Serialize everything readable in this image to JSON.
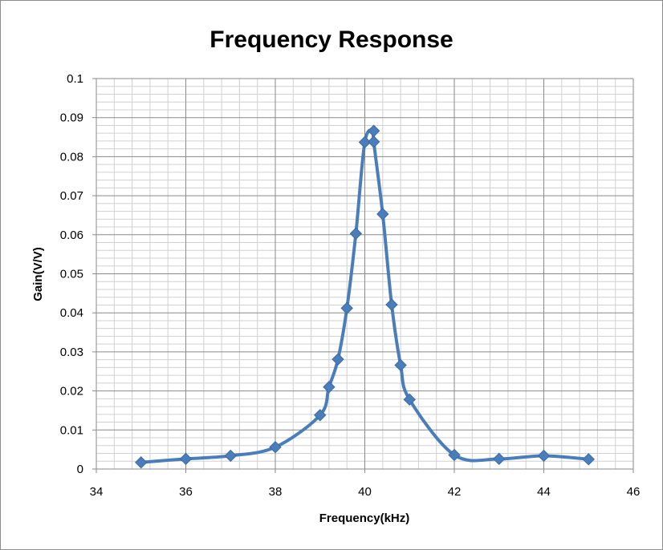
{
  "chart_data": {
    "type": "scatter",
    "title": "Frequency Response",
    "xlabel": "Frequency(kHz)",
    "ylabel": "Gain(V/V)",
    "xlim": [
      34,
      46
    ],
    "ylim": [
      0,
      0.1
    ],
    "x_ticks": [
      "34",
      "36",
      "38",
      "40",
      "42",
      "44",
      "46"
    ],
    "y_ticks": [
      "0",
      "0.01",
      "0.02",
      "0.03",
      "0.04",
      "0.05",
      "0.06",
      "0.07",
      "0.08",
      "0.09",
      "0.1"
    ],
    "grid": true,
    "legend": "none",
    "line_style": "smooth",
    "marker": "diamond",
    "color": "#4a7ebb",
    "series": [
      {
        "x": [
          35,
          36,
          37,
          38,
          39,
          39.2,
          39.4,
          39.6,
          39.8,
          40,
          40.2,
          40.2,
          40.4,
          40.6,
          40.8,
          41,
          42,
          43,
          44,
          45
        ],
        "y": [
          0.0017,
          0.0026,
          0.0034,
          0.0056,
          0.0138,
          0.021,
          0.0281,
          0.0412,
          0.0603,
          0.0837,
          0.0866,
          0.0838,
          0.0653,
          0.0421,
          0.0266,
          0.0178,
          0.0036,
          0.0026,
          0.0034,
          0.0025
        ]
      }
    ]
  }
}
